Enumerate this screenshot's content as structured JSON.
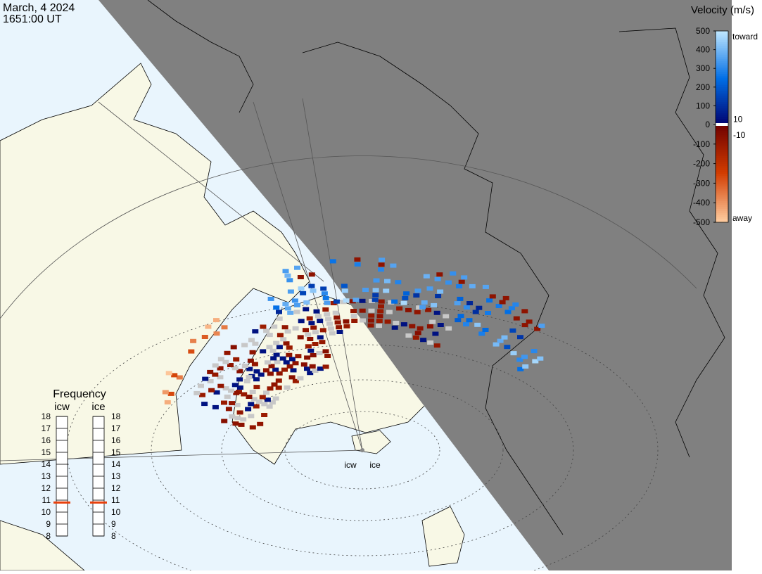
{
  "header": {
    "date": "March, 4 2024",
    "time": "1651:00 UT"
  },
  "velocity_scale": {
    "title": "Velocity (m/s)",
    "lim": [
      -500,
      500
    ],
    "ticks": [
      500,
      400,
      300,
      200,
      100,
      0,
      -100,
      -200,
      -300,
      -400,
      -500
    ],
    "toward": "toward",
    "away": "away",
    "inner_ticks": [
      10,
      -10
    ]
  },
  "frequency": {
    "title": "Frequency",
    "lim": [
      8,
      18
    ],
    "ticks": [
      18,
      17,
      16,
      15,
      14,
      13,
      12,
      11,
      10,
      9,
      8
    ],
    "radars": [
      {
        "name": "icw",
        "value": 10.8
      },
      {
        "name": "ice",
        "value": 10.8
      }
    ]
  },
  "stations": [
    "icw",
    "ice"
  ]
}
